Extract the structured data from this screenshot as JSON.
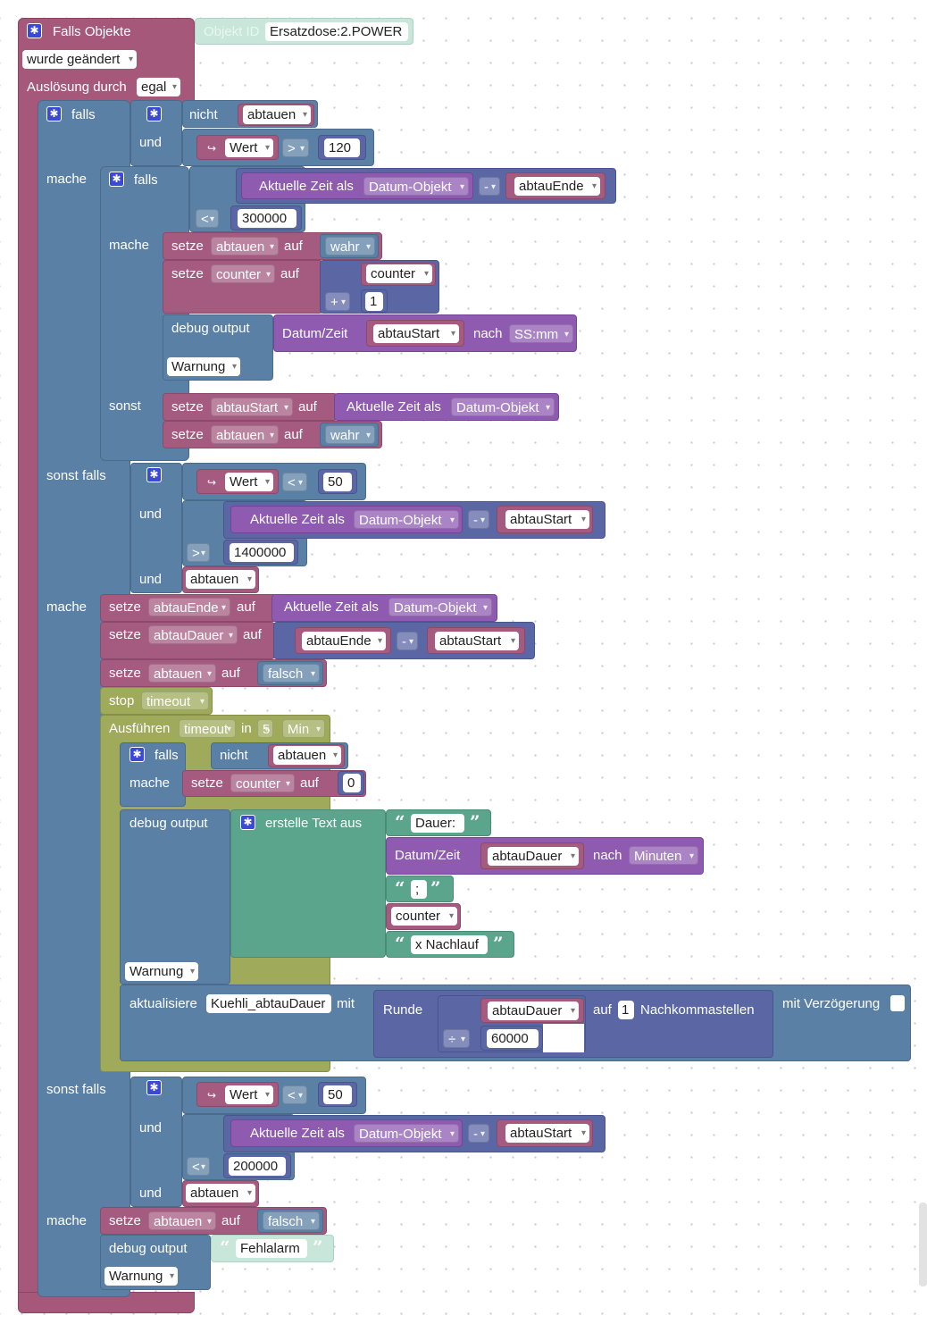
{
  "event": {
    "falls_objekte": "Falls Objekte",
    "objekt_id": "Objekt ID",
    "object_value": "Ersatzdose:2.POWER",
    "wurde_geaendert": "wurde geändert",
    "ausloesung_durch": "Auslösung durch",
    "egal": "egal"
  },
  "kw": {
    "falls": "falls",
    "nicht": "nicht",
    "und": "und",
    "mache": "mache",
    "sonst": "sonst",
    "sonst_falls": "sonst falls",
    "setze": "setze",
    "auf": "auf",
    "debug_output": "debug output",
    "warnung": "Warnung",
    "aktuelle_zeit": "Aktuelle Zeit als",
    "datum_objekt": "Datum-Objekt",
    "datum_zeit": "Datum/Zeit",
    "nach": "nach",
    "wahr": "wahr",
    "falsch": "falsch",
    "wert": "Wert",
    "stop": "stop",
    "timeout": "timeout",
    "ausfuehren": "Ausführen",
    "in": "in",
    "min": "Min",
    "erstelle_text": "erstelle Text aus",
    "minuten": "Minuten",
    "aktualisiere": "aktualisiere",
    "mit": "mit",
    "runde": "Runde",
    "nachkommastellen": "Nachkommastellen",
    "mit_verzoegerung": "mit Verzögerung",
    "ssmm": "SS:mm",
    "gear": "✱"
  },
  "vars": {
    "abtauen": "abtauen",
    "abtauEnde": "abtauEnde",
    "abtauStart": "abtauStart",
    "abtauDauer": "abtauDauer",
    "counter": "counter",
    "state": "Kuehli_abtauDauer"
  },
  "ops": {
    "gt": ">",
    "lt": "<",
    "minus": "-",
    "plus": "+",
    "div": "÷",
    "value_arrow": "↪"
  },
  "nums": {
    "n120": "120",
    "n300000": "300000",
    "n1": "1",
    "n50": "50",
    "n1400000": "1400000",
    "n5": "5",
    "n0": "0",
    "n60000": "60000",
    "n200000": "200000"
  },
  "strings": {
    "dauer": "Dauer:",
    "semicolon": ";",
    "nachlauf": "x Nachlauf",
    "fehlalarm": "Fehlalarm",
    "quote_open": "“",
    "quote_close": "”"
  },
  "colors": {
    "event": "#a5587a",
    "control": "#5b80a5",
    "variable": "#a55b80",
    "date": "#8e5bb0",
    "math": "#5b67a5",
    "timer": "#9fab5b",
    "text": "#5ba58c"
  }
}
